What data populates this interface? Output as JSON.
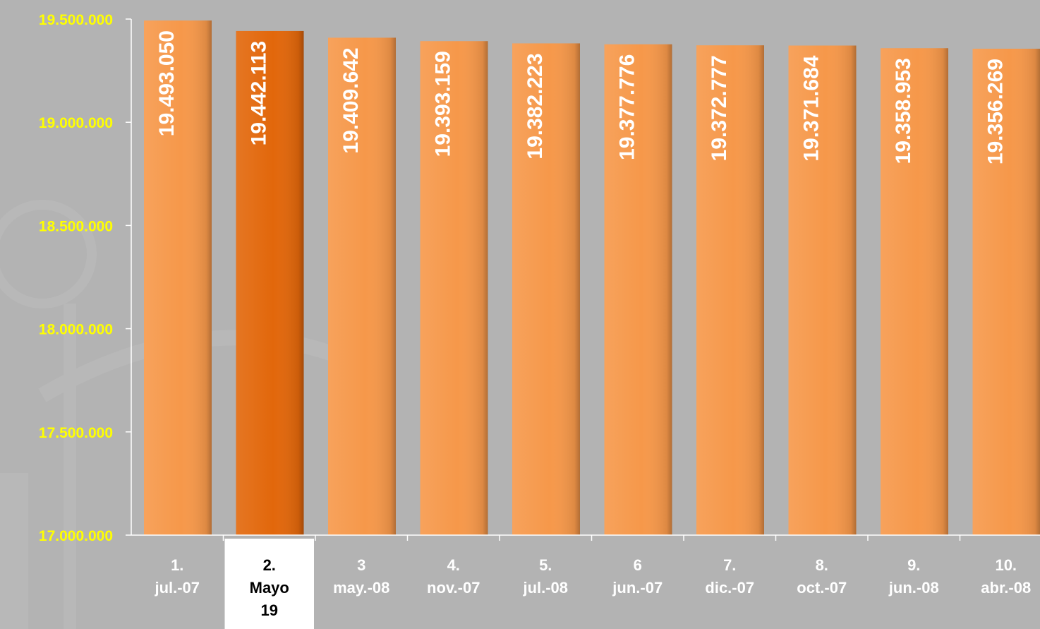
{
  "chart_data": {
    "type": "bar",
    "ylim": [
      17000000,
      19500000
    ],
    "yticks": [
      {
        "value": 19500000,
        "label": "19.500.000"
      },
      {
        "value": 19000000,
        "label": "19.000.000"
      },
      {
        "value": 18500000,
        "label": "18.500.000"
      },
      {
        "value": 18000000,
        "label": "18.000.000"
      },
      {
        "value": 17500000,
        "label": "17.500.000"
      },
      {
        "value": 17000000,
        "label": "17.000.000"
      }
    ],
    "categories": [
      [
        "1.",
        "jul.-07"
      ],
      [
        "2.",
        "Mayo",
        "19"
      ],
      [
        "3",
        "may.-08"
      ],
      [
        "4.",
        "nov.-07"
      ],
      [
        "5.",
        "jul.-08"
      ],
      [
        "6",
        "jun.-07"
      ],
      [
        "7.",
        "dic.-07"
      ],
      [
        "8.",
        "oct.-07"
      ],
      [
        "9.",
        "jun.-08"
      ],
      [
        "10.",
        "abr.-08"
      ]
    ],
    "values": [
      19493050,
      19442113,
      19409642,
      19393159,
      19382223,
      19377776,
      19372777,
      19371684,
      19358953,
      19356269
    ],
    "value_labels": [
      "19.493.050",
      "19.442.113",
      "19.409.642",
      "19.393.159",
      "19.382.223",
      "19.377.776",
      "19.372.777",
      "19.371.684",
      "19.358.953",
      "19.356.269"
    ],
    "highlight_index": 1,
    "colors": {
      "bar": "#f6984a",
      "bar_highlight": "#e2670b",
      "tick_labels": "#ffff00",
      "value_labels": "#ffffff",
      "category_labels": "#ffffff",
      "highlight_box": "#ffffff",
      "highlight_text": "#000000",
      "background": "#b3b3b3"
    }
  }
}
